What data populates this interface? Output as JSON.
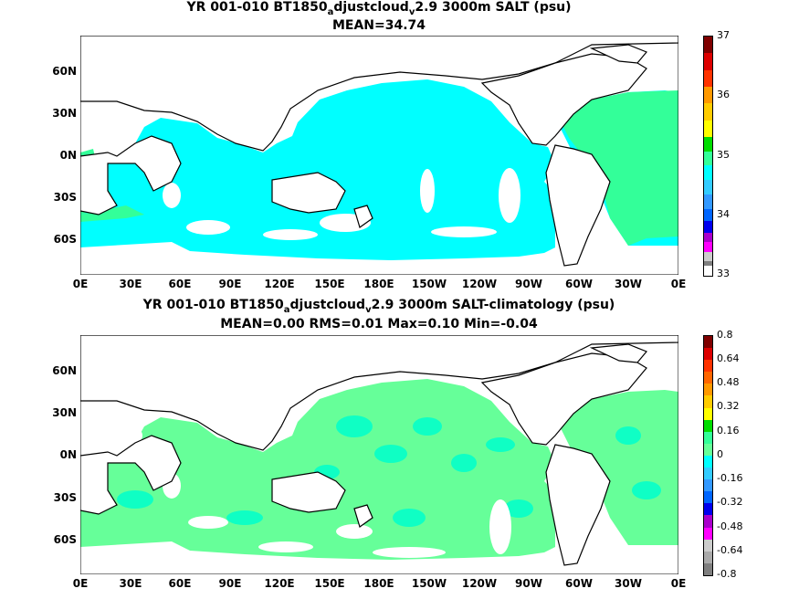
{
  "panels": [
    {
      "title_pre": "YR 001-010 BT1850",
      "title_sub1": "a",
      "title_mid": "djustcloud",
      "title_sub2": "v",
      "title_post": "2.9 3000m SALT (psu)",
      "stats": "MEAN=34.74",
      "colorbar_labels": [
        "37",
        "36",
        "35",
        "34",
        "33"
      ],
      "ocean_color": "#00FFFF",
      "patch_color": "#33FF99"
    },
    {
      "title_pre": "YR 001-010 BT1850",
      "title_sub1": "a",
      "title_mid": "djustcloud",
      "title_sub2": "v",
      "title_post": "2.9 3000m SALT-climatology (psu)",
      "stats": "MEAN=0.00   RMS=0.01   Max=0.10   Min=-0.04",
      "colorbar_labels": [
        "0.8",
        "0.64",
        "0.48",
        "0.32",
        "0.16",
        "0",
        "-0.16",
        "-0.32",
        "-0.48",
        "-0.64",
        "-0.8"
      ],
      "ocean_color": "#66FF99",
      "patch_color": "#00FFCC"
    }
  ],
  "x_labels": [
    "0E",
    "30E",
    "60E",
    "90E",
    "120E",
    "150E",
    "180E",
    "150W",
    "120W",
    "90W",
    "60W",
    "30W",
    "0E"
  ],
  "y_labels": [
    "60N",
    "30N",
    "0N",
    "30S",
    "60S"
  ],
  "colorbar_colors": [
    "#7F7F7F",
    "#CCCCCC",
    "#FF00FF",
    "#AA00CC",
    "#0000EE",
    "#0066FF",
    "#3399FF",
    "#33CCFF",
    "#00FFFF",
    "#33FF99",
    "#00DD00",
    "#FFFF00",
    "#FFCC00",
    "#FF9900",
    "#FF6600",
    "#FF3300",
    "#DD0000",
    "#7F0000"
  ]
}
